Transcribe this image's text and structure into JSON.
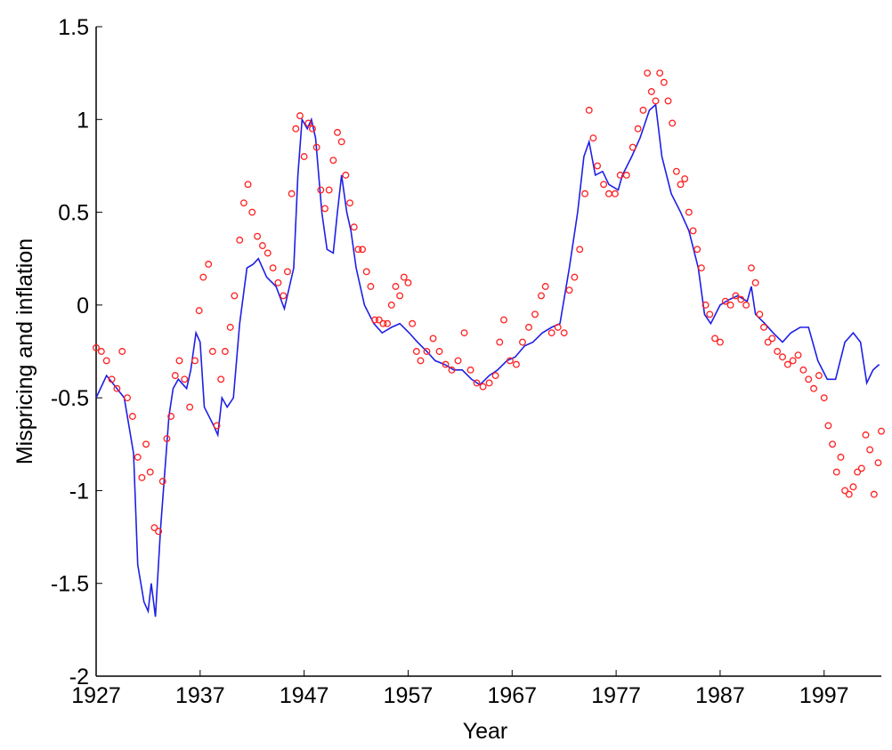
{
  "chart_data": {
    "type": "line",
    "x_label": "Year",
    "y_label": "Mispricing and inflation",
    "xlim": [
      1927,
      2002.5
    ],
    "xticks": [
      1927,
      1937,
      1947,
      1957,
      1967,
      1977,
      1987,
      1997
    ],
    "ylim": [
      -2,
      1.5
    ],
    "yticks": [
      1.5,
      1,
      0.5,
      0,
      -0.5,
      -1,
      -1.5,
      -2
    ],
    "grid": false,
    "series": [
      {
        "type": "line",
        "color": "#1f1fe6",
        "x": [
          1927,
          1928,
          1929,
          1929.7,
          1930.6,
          1931,
          1931.6,
          1932,
          1932.3,
          1932.7,
          1933.2,
          1933.6,
          1934,
          1934.4,
          1934.9,
          1935.7,
          1936.1,
          1936.6,
          1937,
          1937.4,
          1938.3,
          1938.7,
          1939.1,
          1939.6,
          1940.2,
          1940.8,
          1941.5,
          1942.1,
          1942.6,
          1943.4,
          1944.3,
          1945.1,
          1946,
          1946.4,
          1946.8,
          1947.3,
          1947.7,
          1948.1,
          1948.7,
          1949.2,
          1949.8,
          1950.2,
          1950.6,
          1951.1,
          1951.5,
          1952,
          1952.8,
          1953.7,
          1954.5,
          1955.4,
          1956.2,
          1957.1,
          1957.9,
          1958.8,
          1959.6,
          1960.5,
          1961.4,
          1962.2,
          1963.1,
          1963.9,
          1964.8,
          1965.6,
          1966.5,
          1967.3,
          1968.2,
          1969,
          1969.9,
          1970.8,
          1971.6,
          1972.5,
          1973.3,
          1973.9,
          1974.4,
          1975,
          1975.7,
          1976.3,
          1977.2,
          1977.6,
          1978.5,
          1979.3,
          1980.2,
          1980.8,
          1981.4,
          1982.3,
          1983.2,
          1984,
          1984.9,
          1985.5,
          1986.1,
          1987,
          1987.9,
          1988.7,
          1989.6,
          1990,
          1990.4,
          1991.3,
          1992.1,
          1993,
          1993.8,
          1994.7,
          1995.5,
          1996.4,
          1997.3,
          1998.1,
          1999,
          1999.8,
          2000.5,
          2001.1,
          2001.7,
          2002.3
        ],
        "values": [
          -0.5,
          -0.38,
          -0.45,
          -0.5,
          -0.8,
          -1.4,
          -1.6,
          -1.65,
          -1.5,
          -1.68,
          -1.2,
          -0.9,
          -0.6,
          -0.45,
          -0.4,
          -0.45,
          -0.35,
          -0.15,
          -0.2,
          -0.55,
          -0.65,
          -0.7,
          -0.5,
          -0.55,
          -0.5,
          -0.1,
          0.2,
          0.22,
          0.25,
          0.15,
          0.1,
          -0.02,
          0.2,
          0.7,
          1.0,
          0.95,
          1.0,
          0.9,
          0.5,
          0.3,
          0.28,
          0.5,
          0.7,
          0.5,
          0.4,
          0.2,
          0.0,
          -0.1,
          -0.15,
          -0.12,
          -0.1,
          -0.15,
          -0.2,
          -0.25,
          -0.3,
          -0.32,
          -0.35,
          -0.35,
          -0.4,
          -0.43,
          -0.38,
          -0.35,
          -0.3,
          -0.28,
          -0.22,
          -0.2,
          -0.15,
          -0.12,
          -0.1,
          0.2,
          0.5,
          0.8,
          0.88,
          0.7,
          0.72,
          0.65,
          0.62,
          0.7,
          0.8,
          0.9,
          1.05,
          1.08,
          0.8,
          0.6,
          0.5,
          0.4,
          0.2,
          -0.05,
          -0.1,
          0.0,
          0.03,
          0.05,
          0.02,
          0.1,
          -0.05,
          -0.1,
          -0.15,
          -0.2,
          -0.15,
          -0.12,
          -0.12,
          -0.3,
          -0.4,
          -0.4,
          -0.2,
          -0.15,
          -0.2,
          -0.42,
          -0.35,
          -0.32
        ]
      },
      {
        "type": "scatter",
        "color": "#ff2020",
        "x": [
          1927,
          1927.5,
          1928,
          1928.5,
          1929,
          1929.5,
          1930,
          1930.5,
          1931,
          1931.4,
          1931.8,
          1932.2,
          1932.6,
          1933,
          1933.4,
          1933.8,
          1934.2,
          1934.6,
          1935,
          1935.5,
          1936,
          1936.5,
          1936.9,
          1937.3,
          1937.8,
          1938.2,
          1938.6,
          1939,
          1939.4,
          1939.9,
          1940.3,
          1940.8,
          1941.2,
          1941.6,
          1942,
          1942.5,
          1943,
          1943.5,
          1944,
          1944.5,
          1945,
          1945.4,
          1945.8,
          1946.2,
          1946.6,
          1947,
          1947.4,
          1947.8,
          1948.2,
          1948.6,
          1949,
          1949.4,
          1949.8,
          1950.2,
          1950.6,
          1951,
          1951.4,
          1951.8,
          1952.2,
          1952.6,
          1953,
          1953.4,
          1953.8,
          1954.2,
          1954.6,
          1955,
          1955.4,
          1955.8,
          1956.2,
          1956.6,
          1957,
          1957.4,
          1957.8,
          1958.2,
          1958.8,
          1959.4,
          1960,
          1960.6,
          1961.2,
          1961.8,
          1962.4,
          1963,
          1963.6,
          1964.2,
          1964.8,
          1965.4,
          1965.8,
          1966.2,
          1966.8,
          1967.4,
          1968,
          1968.6,
          1969.2,
          1969.8,
          1970.2,
          1970.8,
          1971.4,
          1972,
          1972.5,
          1973,
          1973.5,
          1974,
          1974.4,
          1974.8,
          1975.2,
          1975.8,
          1976.3,
          1976.9,
          1977.4,
          1978,
          1978.6,
          1979.1,
          1979.6,
          1980,
          1980.4,
          1980.8,
          1981.2,
          1981.6,
          1982,
          1982.4,
          1982.8,
          1983.2,
          1983.6,
          1984,
          1984.4,
          1984.8,
          1985.2,
          1985.6,
          1986,
          1986.5,
          1987,
          1987.5,
          1988,
          1988.5,
          1989,
          1989.5,
          1990,
          1990.4,
          1990.8,
          1991.2,
          1991.6,
          1992,
          1992.5,
          1993,
          1993.5,
          1994,
          1994.5,
          1995,
          1995.5,
          1996,
          1996.5,
          1997,
          1997.4,
          1997.8,
          1998.2,
          1998.6,
          1999,
          1999.4,
          1999.8,
          2000.2,
          2000.6,
          2001,
          2001.4,
          2001.8,
          2002.2,
          2002.5
        ],
        "values": [
          -0.23,
          -0.25,
          -0.3,
          -0.4,
          -0.45,
          -0.25,
          -0.5,
          -0.6,
          -0.82,
          -0.93,
          -0.75,
          -0.9,
          -1.2,
          -1.22,
          -0.95,
          -0.72,
          -0.6,
          -0.38,
          -0.3,
          -0.4,
          -0.55,
          -0.3,
          -0.03,
          0.15,
          0.22,
          -0.25,
          -0.65,
          -0.4,
          -0.25,
          -0.12,
          0.05,
          0.35,
          0.55,
          0.65,
          0.5,
          0.37,
          0.32,
          0.28,
          0.2,
          0.12,
          0.05,
          0.18,
          0.6,
          0.95,
          1.02,
          0.8,
          0.98,
          0.95,
          0.85,
          0.62,
          0.52,
          0.62,
          0.78,
          0.93,
          0.88,
          0.7,
          0.55,
          0.42,
          0.3,
          0.3,
          0.18,
          0.1,
          -0.08,
          -0.08,
          -0.1,
          -0.1,
          0.0,
          0.1,
          0.05,
          0.15,
          0.12,
          -0.1,
          -0.25,
          -0.3,
          -0.25,
          -0.18,
          -0.25,
          -0.32,
          -0.35,
          -0.3,
          -0.15,
          -0.35,
          -0.42,
          -0.44,
          -0.42,
          -0.38,
          -0.2,
          -0.08,
          -0.3,
          -0.32,
          -0.2,
          -0.12,
          -0.05,
          0.05,
          0.1,
          -0.15,
          -0.12,
          -0.15,
          0.08,
          0.15,
          0.3,
          0.6,
          1.05,
          0.9,
          0.75,
          0.65,
          0.6,
          0.6,
          0.7,
          0.7,
          0.85,
          0.95,
          1.05,
          1.25,
          1.15,
          1.1,
          1.25,
          1.2,
          1.1,
          0.98,
          0.72,
          0.65,
          0.68,
          0.5,
          0.4,
          0.3,
          0.2,
          0.0,
          -0.05,
          -0.18,
          -0.2,
          0.02,
          0.0,
          0.05,
          0.03,
          0.0,
          0.2,
          0.12,
          -0.05,
          -0.12,
          -0.2,
          -0.18,
          -0.25,
          -0.28,
          -0.32,
          -0.3,
          -0.27,
          -0.35,
          -0.4,
          -0.45,
          -0.38,
          -0.5,
          -0.65,
          -0.75,
          -0.9,
          -0.82,
          -1.0,
          -1.02,
          -0.98,
          -0.9,
          -0.88,
          -0.7,
          -0.78,
          -1.02,
          -0.85,
          -0.68
        ]
      }
    ]
  }
}
